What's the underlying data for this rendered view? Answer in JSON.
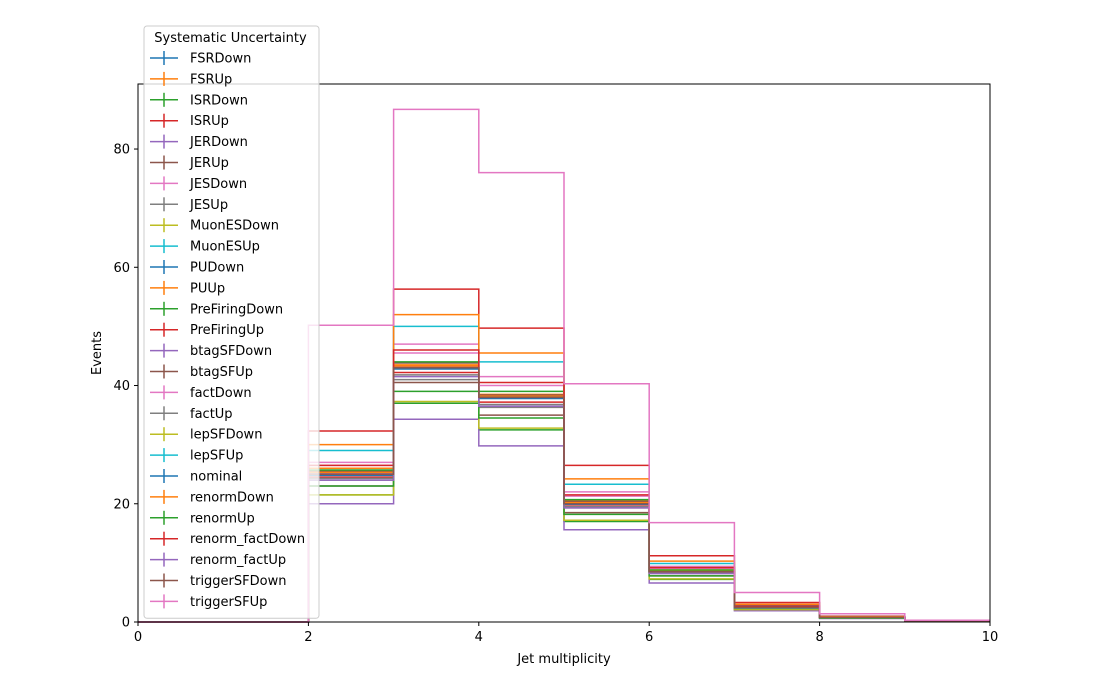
{
  "chart_data": {
    "type": "line",
    "drawstyle": "step",
    "xlabel": "Jet multiplicity",
    "ylabel": "Events",
    "xlim": [
      0,
      10
    ],
    "ylim": [
      0,
      91
    ],
    "x_ticks": [
      0,
      2,
      4,
      6,
      8,
      10
    ],
    "y_ticks": [
      0,
      20,
      40,
      60,
      80
    ],
    "bin_edges": [
      0,
      1,
      2,
      3,
      4,
      5,
      6,
      7,
      8,
      9,
      10
    ],
    "grid": false,
    "legend": {
      "title": "Systematic Uncertainty",
      "placement": "top-left"
    },
    "series": [
      {
        "name": "FSRDown",
        "color": "#1f77b4",
        "values": [
          0,
          0,
          25.0,
          43.0,
          38.0,
          20.0,
          8.5,
          2.5,
          0.8,
          0.2
        ]
      },
      {
        "name": "FSRUp",
        "color": "#ff7f0e",
        "values": [
          0,
          0,
          26.0,
          43.5,
          38.5,
          20.5,
          8.8,
          2.6,
          0.8,
          0.2
        ]
      },
      {
        "name": "ISRDown",
        "color": "#2ca02c",
        "values": [
          0,
          0,
          21.5,
          37.0,
          32.5,
          17.0,
          7.2,
          2.1,
          0.7,
          0.2
        ]
      },
      {
        "name": "ISRUp",
        "color": "#d62728",
        "values": [
          0,
          0,
          32.3,
          56.3,
          49.7,
          26.5,
          11.2,
          3.3,
          1.0,
          0.3
        ]
      },
      {
        "name": "JERDown",
        "color": "#9467bd",
        "values": [
          0,
          0,
          25.2,
          43.2,
          38.0,
          20.1,
          8.6,
          2.5,
          0.8,
          0.2
        ]
      },
      {
        "name": "JERUp",
        "color": "#8c564b",
        "values": [
          0,
          0,
          25.5,
          43.8,
          38.4,
          20.4,
          8.7,
          2.5,
          0.8,
          0.2
        ]
      },
      {
        "name": "JESDown",
        "color": "#e377c2",
        "values": [
          0,
          0,
          27.0,
          47.0,
          41.5,
          22.0,
          9.4,
          2.8,
          0.9,
          0.2
        ]
      },
      {
        "name": "JESUp",
        "color": "#7f7f7f",
        "values": [
          0,
          0,
          24.0,
          41.0,
          36.3,
          19.3,
          8.2,
          2.4,
          0.8,
          0.2
        ]
      },
      {
        "name": "MuonESDown",
        "color": "#bcbd22",
        "values": [
          0,
          0,
          25.0,
          43.0,
          38.0,
          20.0,
          8.5,
          2.5,
          0.8,
          0.2
        ]
      },
      {
        "name": "MuonESUp",
        "color": "#17becf",
        "values": [
          0,
          0,
          25.0,
          43.0,
          38.0,
          20.0,
          8.5,
          2.5,
          0.8,
          0.2
        ]
      },
      {
        "name": "PUDown",
        "color": "#1f77b4",
        "values": [
          0,
          0,
          24.8,
          42.8,
          37.8,
          19.9,
          8.5,
          2.5,
          0.8,
          0.2
        ]
      },
      {
        "name": "PUUp",
        "color": "#ff7f0e",
        "values": [
          0,
          0,
          25.3,
          43.3,
          38.2,
          20.2,
          8.6,
          2.5,
          0.8,
          0.2
        ]
      },
      {
        "name": "PreFiringDown",
        "color": "#2ca02c",
        "values": [
          0,
          0,
          25.7,
          44.0,
          39.0,
          20.7,
          8.8,
          2.6,
          0.8,
          0.2
        ]
      },
      {
        "name": "PreFiringUp",
        "color": "#d62728",
        "values": [
          0,
          0,
          24.5,
          42.2,
          37.2,
          19.6,
          8.3,
          2.4,
          0.8,
          0.2
        ]
      },
      {
        "name": "btagSFDown",
        "color": "#9467bd",
        "values": [
          0,
          0,
          20.0,
          34.3,
          29.8,
          15.6,
          6.6,
          1.9,
          0.6,
          0.2
        ]
      },
      {
        "name": "btagSFUp",
        "color": "#8c564b",
        "values": [
          0,
          0,
          23.0,
          40.5,
          35.0,
          18.5,
          7.8,
          2.3,
          0.7,
          0.2
        ]
      },
      {
        "name": "factDown",
        "color": "#e377c2",
        "values": [
          0,
          0,
          26.5,
          45.5,
          40.0,
          21.3,
          9.1,
          2.7,
          0.8,
          0.2
        ]
      },
      {
        "name": "factUp",
        "color": "#7f7f7f",
        "values": [
          0,
          0,
          24.3,
          41.8,
          36.8,
          19.5,
          8.3,
          2.4,
          0.8,
          0.2
        ]
      },
      {
        "name": "lepSFDown",
        "color": "#bcbd22",
        "values": [
          0,
          0,
          21.5,
          37.3,
          32.8,
          17.2,
          7.3,
          2.1,
          0.7,
          0.2
        ]
      },
      {
        "name": "lepSFUp",
        "color": "#17becf",
        "values": [
          0,
          0,
          29.0,
          50.0,
          44.0,
          23.3,
          9.9,
          2.9,
          0.9,
          0.2
        ]
      },
      {
        "name": "nominal",
        "color": "#1f77b4",
        "values": [
          0,
          0,
          25.0,
          43.0,
          38.0,
          20.0,
          8.5,
          2.5,
          0.8,
          0.2
        ]
      },
      {
        "name": "renormDown",
        "color": "#ff7f0e",
        "values": [
          0,
          0,
          30.0,
          52.0,
          45.5,
          24.2,
          10.3,
          3.0,
          0.9,
          0.3
        ]
      },
      {
        "name": "renormUp",
        "color": "#2ca02c",
        "values": [
          0,
          0,
          23.0,
          39.0,
          34.5,
          18.2,
          7.8,
          2.3,
          0.7,
          0.2
        ]
      },
      {
        "name": "renorm_factDown",
        "color": "#d62728",
        "values": [
          0,
          0,
          26.5,
          46.0,
          40.5,
          21.5,
          9.2,
          2.7,
          0.8,
          0.2
        ]
      },
      {
        "name": "renorm_factUp",
        "color": "#9467bd",
        "values": [
          0,
          0,
          24.0,
          41.5,
          36.5,
          19.3,
          8.2,
          2.4,
          0.8,
          0.2
        ]
      },
      {
        "name": "triggerSFDown",
        "color": "#8c564b",
        "values": [
          0,
          0,
          25.0,
          43.0,
          38.0,
          20.0,
          8.5,
          2.5,
          0.8,
          0.2
        ]
      },
      {
        "name": "triggerSFUp",
        "color": "#e377c2",
        "values": [
          0,
          0,
          50.2,
          86.7,
          76.0,
          40.3,
          16.8,
          5.0,
          1.4,
          0.3
        ]
      }
    ]
  }
}
